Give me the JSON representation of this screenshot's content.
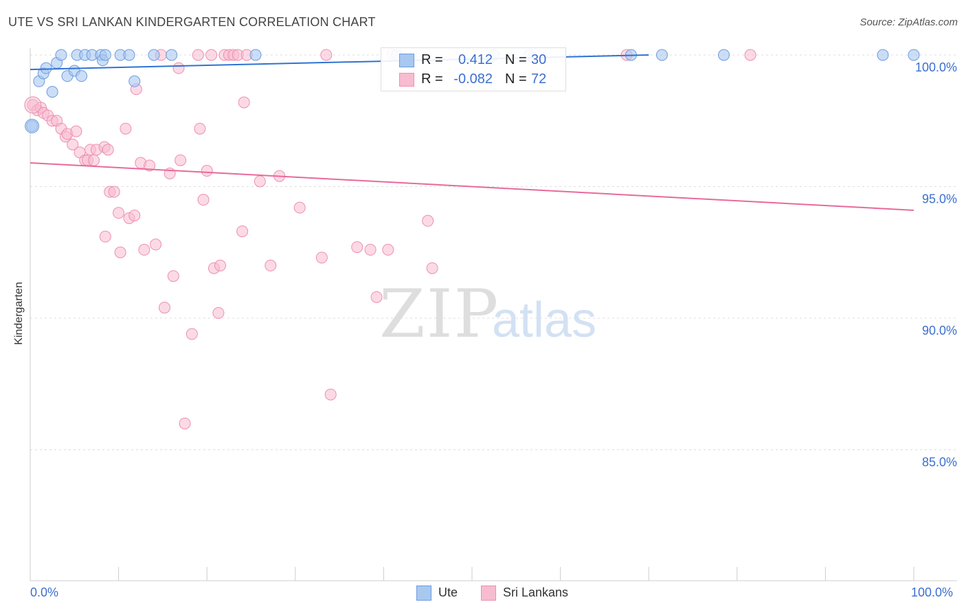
{
  "title": "UTE VS SRI LANKAN KINDERGARTEN CORRELATION CHART",
  "source": "Source: ZipAtlas.com",
  "watermark": {
    "zip": "ZIP",
    "atlas": "atlas"
  },
  "legend": {
    "rows": [
      {
        "r_label": "R =",
        "r_value": "0.412",
        "n_label": "N =",
        "n_value": "30",
        "color": "#a8c8f0",
        "stroke": "#6d9be0"
      },
      {
        "r_label": "R =",
        "r_value": "-0.082",
        "n_label": "N =",
        "n_value": "72",
        "color": "#f7bcd0",
        "stroke": "#ee8fb0"
      }
    ]
  },
  "bottom_legend": {
    "ute": "Ute",
    "sri": "Sri Lankans"
  },
  "colors": {
    "ute_fill": "#a8c8f0",
    "ute_stroke": "#6d9be0",
    "ute_line": "#2d72d2",
    "sri_fill": "#f7bcd0",
    "sri_stroke": "#ec8fb0",
    "sri_line": "#e8699a",
    "axis_text": "#3b6fd0",
    "grid": "#dddddd"
  },
  "chart_data": {
    "type": "scatter",
    "title": "UTE VS SRI LANKAN KINDERGARTEN CORRELATION CHART",
    "xlabel": "",
    "ylabel": "Kindergarten",
    "x_ticks": [
      "0.0%",
      "100.0%"
    ],
    "y_ticks": [
      "100.0%",
      "95.0%",
      "90.0%",
      "85.0%"
    ],
    "xlim": [
      0,
      100
    ],
    "ylim": [
      80.5,
      100.8
    ],
    "grid": true,
    "series": [
      {
        "name": "Ute",
        "trend": [
          [
            0,
            99.45
          ],
          [
            70,
            100.0
          ]
        ],
        "points": [
          [
            0.2,
            97.3
          ],
          [
            1.0,
            99.0
          ],
          [
            1.5,
            99.3
          ],
          [
            1.8,
            99.5
          ],
          [
            2.5,
            98.6
          ],
          [
            3.0,
            99.7
          ],
          [
            3.5,
            100.0
          ],
          [
            4.2,
            99.2
          ],
          [
            5.0,
            99.4
          ],
          [
            5.3,
            100.0
          ],
          [
            5.8,
            99.2
          ],
          [
            6.2,
            100.0
          ],
          [
            7.0,
            100.0
          ],
          [
            8.0,
            100.0
          ],
          [
            8.2,
            99.8
          ],
          [
            8.5,
            100.0
          ],
          [
            10.2,
            100.0
          ],
          [
            11.2,
            100.0
          ],
          [
            11.8,
            99.0
          ],
          [
            14.0,
            100.0
          ],
          [
            16.0,
            100.0
          ],
          [
            25.5,
            100.0
          ],
          [
            41.5,
            100.0
          ],
          [
            52.5,
            100.0
          ],
          [
            56.5,
            100.0
          ],
          [
            68.0,
            100.0
          ],
          [
            71.5,
            100.0
          ],
          [
            78.5,
            100.0
          ],
          [
            96.5,
            100.0
          ],
          [
            100.0,
            100.0
          ]
        ]
      },
      {
        "name": "Sri Lankans",
        "trend": [
          [
            0,
            95.9
          ],
          [
            100,
            94.1
          ]
        ],
        "points": [
          [
            0.3,
            98.1
          ],
          [
            0.8,
            97.9
          ],
          [
            1.2,
            98.0
          ],
          [
            1.5,
            97.8
          ],
          [
            2.0,
            97.7
          ],
          [
            2.5,
            97.5
          ],
          [
            3.0,
            97.5
          ],
          [
            3.5,
            97.2
          ],
          [
            4.0,
            96.9
          ],
          [
            4.2,
            97.0
          ],
          [
            4.8,
            96.6
          ],
          [
            5.2,
            97.1
          ],
          [
            5.6,
            96.3
          ],
          [
            6.2,
            96.0
          ],
          [
            6.5,
            96.0
          ],
          [
            6.8,
            96.4
          ],
          [
            7.2,
            96.0
          ],
          [
            7.5,
            96.4
          ],
          [
            8.4,
            96.5
          ],
          [
            8.8,
            96.4
          ],
          [
            9.0,
            94.8
          ],
          [
            9.5,
            94.8
          ],
          [
            8.5,
            93.1
          ],
          [
            10.0,
            94.0
          ],
          [
            10.2,
            92.5
          ],
          [
            10.8,
            97.2
          ],
          [
            11.2,
            93.8
          ],
          [
            11.8,
            93.9
          ],
          [
            12.0,
            98.7
          ],
          [
            12.5,
            95.9
          ],
          [
            12.9,
            92.6
          ],
          [
            13.5,
            95.8
          ],
          [
            14.2,
            92.8
          ],
          [
            14.8,
            100.0
          ],
          [
            15.2,
            90.4
          ],
          [
            15.8,
            95.5
          ],
          [
            16.2,
            91.6
          ],
          [
            16.8,
            99.5
          ],
          [
            17.0,
            96.0
          ],
          [
            17.5,
            86.0
          ],
          [
            18.3,
            89.4
          ],
          [
            19.0,
            100.0
          ],
          [
            19.2,
            97.2
          ],
          [
            19.6,
            94.5
          ],
          [
            20.0,
            95.6
          ],
          [
            20.5,
            100.0
          ],
          [
            20.8,
            91.9
          ],
          [
            21.3,
            90.2
          ],
          [
            21.5,
            92.0
          ],
          [
            22.0,
            100.0
          ],
          [
            22.5,
            100.0
          ],
          [
            23.0,
            100.0
          ],
          [
            23.5,
            100.0
          ],
          [
            24.0,
            93.3
          ],
          [
            24.2,
            98.2
          ],
          [
            24.5,
            100.0
          ],
          [
            26.0,
            95.2
          ],
          [
            27.2,
            92.0
          ],
          [
            28.2,
            95.4
          ],
          [
            30.5,
            94.2
          ],
          [
            33.0,
            92.3
          ],
          [
            33.5,
            100.0
          ],
          [
            34.0,
            87.1
          ],
          [
            37.0,
            92.7
          ],
          [
            38.5,
            92.6
          ],
          [
            39.2,
            90.8
          ],
          [
            40.5,
            92.6
          ],
          [
            41.0,
            100.0
          ],
          [
            45.0,
            93.7
          ],
          [
            45.5,
            91.9
          ],
          [
            67.5,
            100.0
          ],
          [
            81.5,
            100.0
          ]
        ]
      }
    ]
  }
}
